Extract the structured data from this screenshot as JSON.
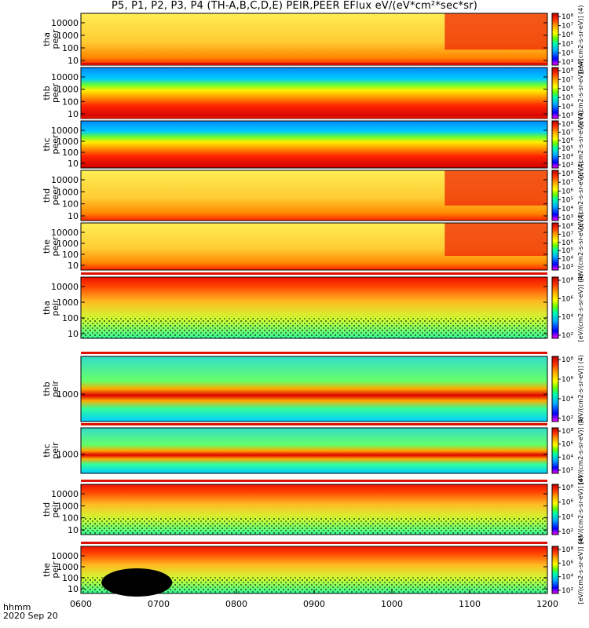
{
  "title": "P5, P1, P2, P3, P4 (TH-A,B,C,D,E) PEIR,PEER EFlux eV/(eV*cm²*sec*sr)",
  "footer": {
    "time_label": "hhmm",
    "date_label": "2020 Sep 20"
  },
  "colorbar_label": "[eV/(cm2-s-sr-eV)] (4)",
  "chart_data": [
    {
      "type": "heatmap",
      "title": "P5, P1, P2, P3, P4 (TH-A,B,C,D,E) PEIR,PEER EFlux eV/(eV*cm²*sec*sr)",
      "x": {
        "label": "hhmm",
        "ticks": [
          "0600",
          "0700",
          "0800",
          "0900",
          "1000",
          "1100",
          "1200"
        ],
        "range": [
          "0600",
          "1200"
        ]
      },
      "panels": [
        {
          "name": "tha peer",
          "label": [
            "tha",
            "peer"
          ],
          "y_ticks": [
            "10",
            "100",
            "1000",
            "10000"
          ],
          "y_scale": "log",
          "cb_ticks": [
            "10³",
            "10⁴",
            "10⁵",
            "10⁶",
            "10⁷",
            "10⁸"
          ],
          "cb_label": "[eV/(cm2-s-sr-eV)] (4)",
          "gap_top": false
        },
        {
          "name": "thb peer",
          "label": [
            "thb",
            "peer"
          ],
          "y_ticks": [
            "10",
            "100",
            "1000",
            "10000"
          ],
          "y_scale": "log",
          "cb_ticks": [
            "10³",
            "10⁴",
            "10⁵",
            "10⁶",
            "10⁷",
            "10⁸"
          ],
          "cb_label": "[eV/(cm2-s-sr-eV)] (4)",
          "gap_top": true
        },
        {
          "name": "thc peer",
          "label": [
            "thc",
            "peer"
          ],
          "y_ticks": [
            "10",
            "100",
            "1000",
            "10000"
          ],
          "y_scale": "log",
          "cb_ticks": [
            "10³",
            "10⁴",
            "10⁵",
            "10⁶",
            "10⁷",
            "10⁸"
          ],
          "cb_label": "[eV/(cm2-s-sr-eV)] (4)",
          "gap_top": true
        },
        {
          "name": "thd peer",
          "label": [
            "thd",
            "peer"
          ],
          "y_ticks": [
            "10",
            "100",
            "1000",
            "10000"
          ],
          "y_scale": "log",
          "cb_ticks": [
            "10³",
            "10⁴",
            "10⁵",
            "10⁶",
            "10⁷",
            "10⁸"
          ],
          "cb_label": "[eV/(cm2-s-sr-eV)] (4)",
          "gap_top": false
        },
        {
          "name": "the peer",
          "label": [
            "the",
            "peer"
          ],
          "y_ticks": [
            "10",
            "100",
            "1000",
            "10000"
          ],
          "y_scale": "log",
          "cb_ticks": [
            "10³",
            "10⁴",
            "10⁵",
            "10⁶",
            "10⁷",
            "10⁸"
          ],
          "cb_label": "[eV/(cm2-s-sr-eV)] (4)",
          "gap_top": false
        },
        {
          "name": "tha peir",
          "label": [
            "tha",
            "peir"
          ],
          "y_ticks": [
            "10",
            "100",
            "1000",
            "10000"
          ],
          "y_scale": "log",
          "cb_ticks": [
            "10²",
            "10⁴",
            "10⁶",
            "10⁸"
          ],
          "cb_label": "[eV/(cm2-s-sr-eV)] (4)",
          "gap_top": true
        },
        {
          "name": "thb peir",
          "label": [
            "thb",
            "peir"
          ],
          "y_ticks": [
            "1000"
          ],
          "y_scale": "log",
          "cb_ticks": [
            "10²",
            "10⁴",
            "10⁶",
            "10⁸"
          ],
          "cb_label": "[eV/(cm2-s-sr-eV)] (4)",
          "gap_top": true
        },
        {
          "name": "thc peir",
          "label": [
            "thc",
            "peir"
          ],
          "y_ticks": [
            "1000"
          ],
          "y_scale": "log",
          "cb_ticks": [
            "10²",
            "10⁴",
            "10⁶",
            "10⁸"
          ],
          "cb_label": "[eV/(cm2-s-sr-eV)] (4)",
          "gap_top": true
        },
        {
          "name": "thd peir",
          "label": [
            "thd",
            "peir"
          ],
          "y_ticks": [
            "10",
            "100",
            "1000",
            "10000"
          ],
          "y_scale": "log",
          "cb_ticks": [
            "10²",
            "10⁴",
            "10⁶",
            "10⁸"
          ],
          "cb_label": "[eV/(cm2-s-sr-eV)] (4)",
          "gap_top": true
        },
        {
          "name": "the peir",
          "label": [
            "the",
            "peir"
          ],
          "y_ticks": [
            "10",
            "100",
            "1000",
            "10000"
          ],
          "y_scale": "log",
          "cb_ticks": [
            "10²",
            "10⁴",
            "10⁶",
            "10⁸"
          ],
          "cb_label": "[eV/(cm2-s-sr-eV)] (4)",
          "gap_top": true
        }
      ],
      "colors": {
        "scale": [
          "#ff00ff",
          "#0000ff",
          "#00aaff",
          "#00ffaa",
          "#66ff00",
          "#ffff00",
          "#ffaa00",
          "#ff4400",
          "#cc0000"
        ],
        "gap": "#ffffff"
      }
    }
  ]
}
